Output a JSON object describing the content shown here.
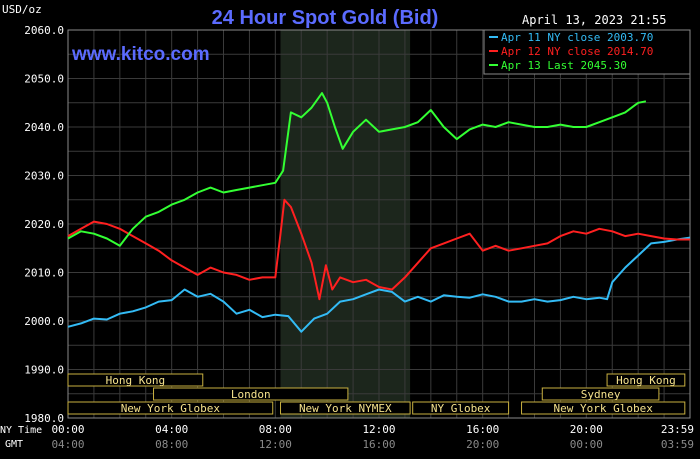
{
  "chart_data": {
    "type": "line",
    "title": "24 Hour Spot Gold (Bid)",
    "watermark": "www.kitco.com",
    "timestamp": "April 13, 2023 21:55",
    "ylabel": "USD/oz",
    "ylim": [
      1980,
      2060
    ],
    "yticks": [
      "2060.0",
      "2050.0",
      "2040.0",
      "2030.0",
      "2020.0",
      "2010.0",
      "2000.0",
      "1990.0",
      "1980.0"
    ],
    "xlim": [
      0,
      24
    ],
    "xticks": [
      {
        "x": 0,
        "ny": "00:00",
        "gmt": "04:00"
      },
      {
        "x": 4,
        "ny": "04:00",
        "gmt": "08:00"
      },
      {
        "x": 8,
        "ny": "08:00",
        "gmt": "12:00"
      },
      {
        "x": 12,
        "ny": "12:00",
        "gmt": "16:00"
      },
      {
        "x": 16,
        "ny": "16:00",
        "gmt": "20:00"
      },
      {
        "x": 20,
        "ny": "20:00",
        "gmt": "00:00"
      },
      {
        "x": 24,
        "ny": "23:59",
        "gmt": "03:59"
      }
    ],
    "axis_row_labels": {
      "ny": "NY Time",
      "gmt": "GMT"
    },
    "shaded_session": [
      8.2,
      13.2
    ],
    "legend": [
      {
        "label": "Apr 11 NY close 2003.70",
        "color": "#33bbf5"
      },
      {
        "label": "Apr 12 NY close 2014.70",
        "color": "#ff2020"
      },
      {
        "label": "Apr 13 Last 2045.30",
        "color": "#33ff33"
      }
    ],
    "sessions": [
      {
        "label": "Hong Kong",
        "start": 0,
        "end": 5.2,
        "row": 0
      },
      {
        "label": "Hong Kong",
        "start": 20.8,
        "end": 23.8,
        "row": 0
      },
      {
        "label": "London",
        "start": 3.3,
        "end": 10.8,
        "row": 1
      },
      {
        "label": "Sydney",
        "start": 18.3,
        "end": 22.8,
        "row": 1
      },
      {
        "label": "New York Globex",
        "start": 0,
        "end": 7.9,
        "row": 2
      },
      {
        "label": "New York NYMEX",
        "start": 8.2,
        "end": 13.2,
        "row": 2
      },
      {
        "label": "NY Globex",
        "start": 13.3,
        "end": 17.0,
        "row": 2
      },
      {
        "label": "New York Globex",
        "start": 17.5,
        "end": 23.8,
        "row": 2
      }
    ],
    "series": [
      {
        "name": "Apr 11",
        "color": "#33bbf5",
        "x": [
          0,
          0.5,
          1,
          1.5,
          2,
          2.5,
          3,
          3.5,
          4,
          4.5,
          5,
          5.5,
          6,
          6.5,
          7,
          7.5,
          8,
          8.5,
          9,
          9.5,
          10,
          10.5,
          11,
          11.5,
          12,
          12.5,
          13,
          13.5,
          14,
          14.5,
          15,
          15.5,
          16,
          16.5,
          17,
          17.5,
          18,
          18.5,
          19,
          19.5,
          20,
          20.5,
          20.8,
          21,
          21.5,
          22,
          22.5,
          23,
          23.5,
          24
        ],
        "values": [
          1998.8,
          1999.5,
          2000.5,
          2000.3,
          2001.5,
          2002.0,
          2002.8,
          2004.0,
          2004.3,
          2006.5,
          2005.0,
          2005.6,
          2004.0,
          2001.5,
          2002.3,
          2000.8,
          2001.3,
          2001.0,
          1997.8,
          2000.5,
          2001.5,
          2004.0,
          2004.5,
          2005.5,
          2006.5,
          2006.0,
          2004.0,
          2005.0,
          2004.0,
          2005.3,
          2005.0,
          2004.8,
          2005.5,
          2005.0,
          2004.0,
          2004.0,
          2004.5,
          2004.0,
          2004.3,
          2005.0,
          2004.5,
          2004.8,
          2004.5,
          2008.0,
          2011.0,
          2013.5,
          2016.0,
          2016.3,
          2016.8,
          2017.2
        ]
      },
      {
        "name": "Apr 12",
        "color": "#ff2020",
        "x": [
          0,
          0.5,
          1,
          1.5,
          2,
          2.5,
          3,
          3.5,
          4,
          4.5,
          5,
          5.5,
          6,
          6.5,
          7,
          7.5,
          8,
          8.2,
          8.35,
          8.6,
          9,
          9.4,
          9.7,
          9.95,
          10.2,
          10.5,
          11,
          11.5,
          12,
          12.5,
          13,
          13.5,
          14,
          14.5,
          15,
          15.5,
          16,
          16.5,
          17,
          17.5,
          18,
          18.5,
          19,
          19.5,
          20,
          20.5,
          21,
          21.5,
          22,
          22.5,
          23,
          23.5,
          24
        ],
        "values": [
          2017.5,
          2019.0,
          2020.5,
          2020.0,
          2019.0,
          2017.5,
          2016.0,
          2014.5,
          2012.5,
          2011.0,
          2009.5,
          2011.0,
          2010.0,
          2009.5,
          2008.5,
          2009.0,
          2009.0,
          2018.0,
          2025.0,
          2023.5,
          2018.0,
          2012.0,
          2004.5,
          2011.5,
          2006.5,
          2009.0,
          2008.0,
          2008.5,
          2007.0,
          2006.5,
          2009.0,
          2012.0,
          2015.0,
          2016.0,
          2017.0,
          2018.0,
          2014.5,
          2015.5,
          2014.5,
          2015.0,
          2015.5,
          2016.0,
          2017.5,
          2018.5,
          2018.0,
          2019.0,
          2018.5,
          2017.5,
          2018.0,
          2017.5,
          2017.0,
          2016.8,
          2016.8
        ]
      },
      {
        "name": "Apr 13",
        "color": "#33ff33",
        "x": [
          0,
          0.5,
          1,
          1.5,
          2,
          2.5,
          3,
          3.5,
          4,
          4.5,
          5,
          5.5,
          6,
          6.5,
          7,
          7.5,
          8,
          8.3,
          8.6,
          9,
          9.4,
          9.8,
          10,
          10.3,
          10.6,
          11,
          11.5,
          12,
          12.5,
          13,
          13.5,
          14,
          14.5,
          15,
          15.5,
          16,
          16.5,
          17,
          17.5,
          18,
          18.5,
          19,
          19.5,
          20,
          20.5,
          21,
          21.5,
          22,
          22.3
        ],
        "values": [
          2017.0,
          2018.5,
          2018.0,
          2017.0,
          2015.5,
          2019.0,
          2021.5,
          2022.5,
          2024.0,
          2025.0,
          2026.5,
          2027.5,
          2026.5,
          2027.0,
          2027.5,
          2028.0,
          2028.5,
          2031.0,
          2043.0,
          2042.0,
          2044.0,
          2047.0,
          2045.0,
          2040.0,
          2035.5,
          2039.0,
          2041.5,
          2039.0,
          2039.5,
          2040.0,
          2041.0,
          2043.5,
          2040.0,
          2037.5,
          2039.5,
          2040.5,
          2040.0,
          2041.0,
          2040.5,
          2040.0,
          2040.0,
          2040.5,
          2040.0,
          2040.0,
          2041.0,
          2042.0,
          2043.0,
          2045.0,
          2045.3
        ]
      }
    ]
  }
}
